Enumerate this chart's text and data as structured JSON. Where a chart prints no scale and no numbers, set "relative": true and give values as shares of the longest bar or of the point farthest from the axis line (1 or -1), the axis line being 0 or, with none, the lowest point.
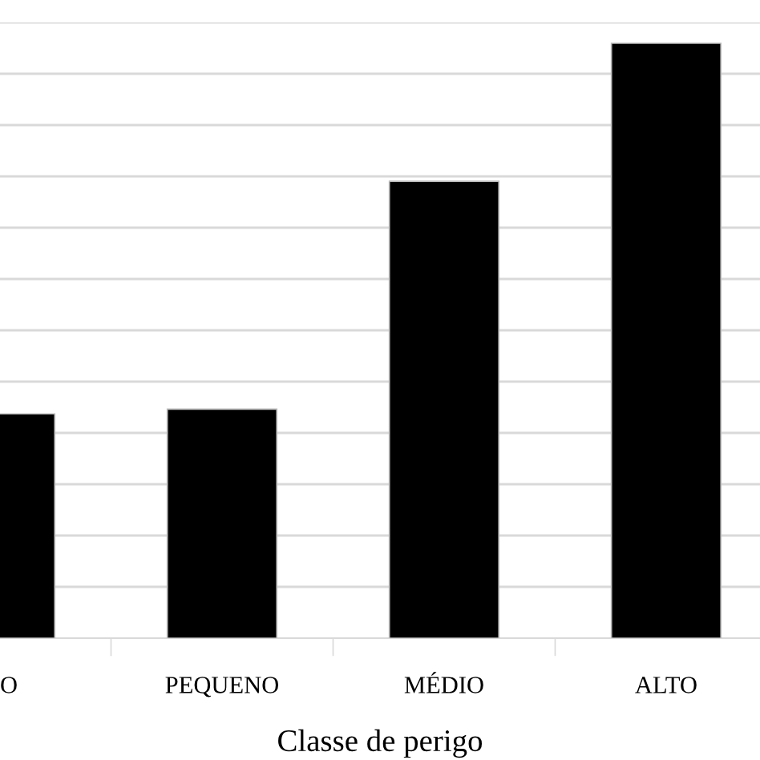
{
  "chart_data": {
    "type": "bar",
    "xlabel": "Classe de perigo",
    "categories": [
      "O",
      "PEQUENO",
      "MÉDIO",
      "ALTO"
    ],
    "values": [
      0.377,
      0.385,
      0.768,
      1
    ],
    "color": "#000000",
    "relative": true,
    "grid": "y",
    "legend": false
  }
}
